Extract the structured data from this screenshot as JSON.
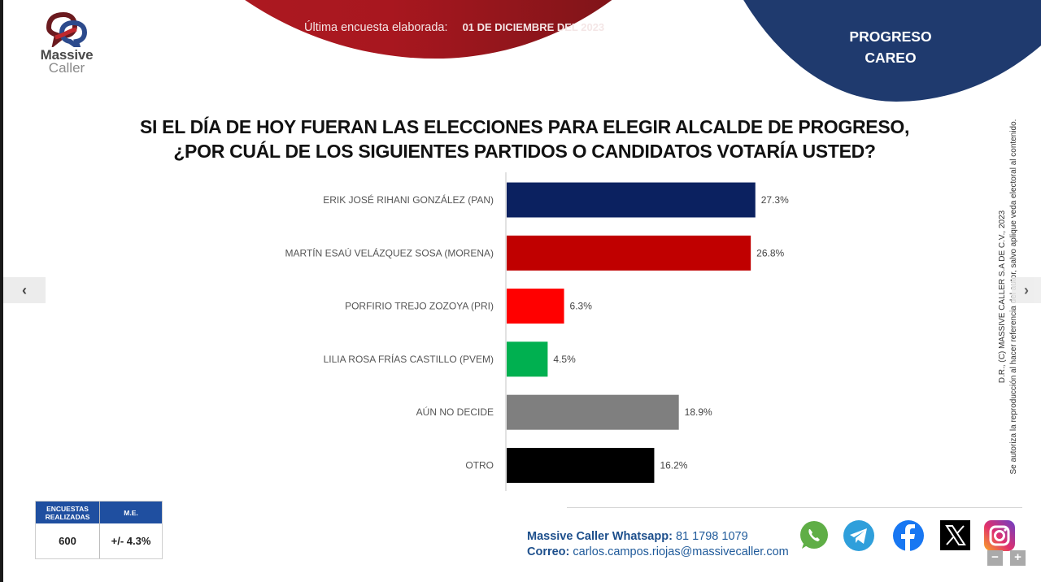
{
  "header": {
    "date_label": "Última encuesta elaborada:",
    "date_value": "01 DE DICIEMBRE DEL 2023",
    "region_line1": "PROGRESO",
    "region_line2": "CAREO"
  },
  "logo": {
    "line1": "Massive",
    "line2": "Caller"
  },
  "title": {
    "line1": "SI EL DÍA DE HOY FUERAN LAS ELECCIONES PARA ELEGIR ALCALDE DE PROGRESO,",
    "line2": "¿POR CUÁL DE LOS SIGUIENTES PARTIDOS O CANDIDATOS VOTARÍA USTED?"
  },
  "chart_data": {
    "type": "bar",
    "orientation": "horizontal",
    "title": "SI EL DÍA DE HOY FUERAN LAS ELECCIONES PARA ELEGIR ALCALDE DE PROGRESO, ¿POR CUÁL DE LOS SIGUIENTES PARTIDOS O CANDIDATOS VOTARÍA USTED?",
    "categories": [
      "ERIK JOSÉ RIHANI GONZÁLEZ (PAN)",
      "MARTÍN ESAÚ VELÁZQUEZ SOSA (MORENA)",
      "PORFIRIO TREJO ZOZOYA   (PRI)",
      "LILIA ROSA FRÍAS CASTILLO (PVEM)",
      "AÚN NO DECIDE",
      "OTRO"
    ],
    "values": [
      27.3,
      26.8,
      6.3,
      4.5,
      18.9,
      16.2
    ],
    "value_labels": [
      "27.3%",
      "26.8%",
      "6.3%",
      "4.5%",
      "18.9%",
      "16.2%"
    ],
    "colors": [
      "#0b2160",
      "#c00000",
      "#ff0000",
      "#00b050",
      "#7f7f7f",
      "#000000"
    ],
    "xlabel": "",
    "ylabel": "",
    "unit": "%",
    "grid": false,
    "legend": "none"
  },
  "copyright": {
    "line1": "D.R., (C) MASSIVE CALLER S.A DE C.V., 2023",
    "line2": "Se autoriza la reproducción al hacer referencia del autor, salvo aplique veda electoral al contenido."
  },
  "nav": {
    "prev": "‹",
    "next": "›"
  },
  "stats": {
    "col1_header": "ENCUESTAS REALIZADAS",
    "col2_header": "M.E.",
    "col1_value": "600",
    "col2_value": "+/- 4.3%"
  },
  "contact": {
    "whatsapp_label": "Massive Caller Whatsapp:",
    "whatsapp_value": "81 1798 1079",
    "email_label": "Correo:",
    "email_value": "carlos.campos.riojas@massivecaller.com"
  },
  "social": [
    "whatsapp",
    "telegram",
    "facebook",
    "x",
    "instagram"
  ],
  "zoom": {
    "minus": "−",
    "plus": "+"
  }
}
